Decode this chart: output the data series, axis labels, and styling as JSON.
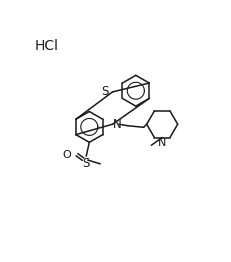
{
  "bg_color": "#ffffff",
  "line_color": "#1a1a1a",
  "text_color": "#1a1a1a",
  "figsize": [
    2.31,
    2.62
  ],
  "dpi": 100,
  "hcl_text": "HCl",
  "S_bridge_label": "S",
  "N_label": "N",
  "S_sulfinyl_label": "S",
  "O_label": "O",
  "N_pip_label": "N"
}
